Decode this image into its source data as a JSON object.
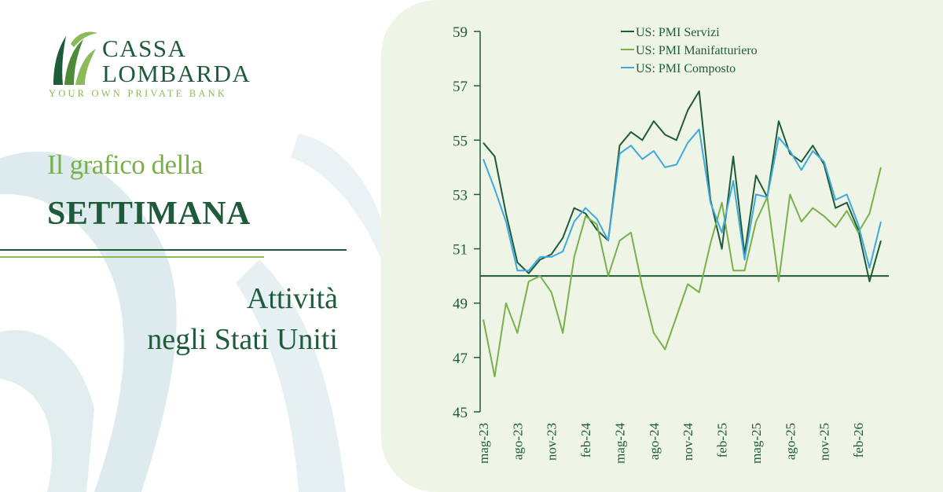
{
  "brand": {
    "name_line1": "CASSA",
    "name_line2": "LOMBARDA",
    "tagline": "YOUR OWN PRIVATE BANK",
    "color_dark": "#1e5b3a",
    "color_light": "#8bbb58"
  },
  "heading": {
    "line1": "Il grafico della",
    "line2": "SETTIMANA"
  },
  "subtitle": {
    "line1": "Attività",
    "line2": "negli Stati Uniti"
  },
  "chart_data": {
    "type": "line",
    "ylim": [
      45,
      59
    ],
    "yticks": [
      45,
      47,
      49,
      51,
      53,
      55,
      57,
      59
    ],
    "baseline": 50,
    "grid": false,
    "legend_position": "top",
    "x": [
      "mag-23",
      "giu-23",
      "lug-23",
      "ago-23",
      "set-23",
      "ott-23",
      "nov-23",
      "dic-23",
      "gen-24",
      "feb-24",
      "mar-24",
      "apr-24",
      "mag-24",
      "giu-24",
      "lug-24",
      "ago-24",
      "set-24",
      "ott-24",
      "nov-24",
      "dic-24",
      "gen-25",
      "feb-25",
      "mar-25",
      "apr-25",
      "mag-25",
      "giu-25",
      "lug-25",
      "ago-25",
      "set-25",
      "ott-25",
      "nov-25",
      "dic-25",
      "gen-26",
      "feb-26",
      "mar-26",
      "apr-26"
    ],
    "xtick_labels": [
      "mag-23",
      "ago-23",
      "nov-23",
      "feb-24",
      "mag-24",
      "ago-24",
      "nov-24",
      "feb-25",
      "mag-25",
      "ago-25",
      "nov-25",
      "feb-26"
    ],
    "series": [
      {
        "name": "US: PMI Servizi",
        "color": "#1e5b3a",
        "values": [
          54.9,
          54.4,
          52.3,
          50.5,
          50.1,
          50.6,
          50.8,
          51.4,
          52.5,
          52.3,
          51.7,
          51.3,
          54.8,
          55.3,
          55.0,
          55.7,
          55.2,
          55.0,
          56.1,
          56.8,
          52.8,
          51.0,
          54.4,
          50.8,
          53.7,
          52.9,
          55.7,
          54.5,
          54.2,
          54.8,
          54.1,
          52.5,
          52.7,
          51.7,
          49.8,
          51.3
        ]
      },
      {
        "name": "US: PMI Manifatturiero",
        "color": "#79b04c",
        "values": [
          48.4,
          46.3,
          49.0,
          47.9,
          49.8,
          50.0,
          49.4,
          47.9,
          50.7,
          52.2,
          51.9,
          50.0,
          51.3,
          51.6,
          49.6,
          47.9,
          47.3,
          48.5,
          49.7,
          49.4,
          51.2,
          52.7,
          50.2,
          50.2,
          52.0,
          52.9,
          49.8,
          53.0,
          52.0,
          52.5,
          52.2,
          51.8,
          52.4,
          51.6,
          52.3,
          54.0
        ]
      },
      {
        "name": "US: PMI Composto",
        "color": "#3fa9dd",
        "values": [
          54.3,
          53.2,
          52.0,
          50.2,
          50.2,
          50.7,
          50.7,
          50.9,
          52.0,
          52.5,
          52.1,
          51.3,
          54.5,
          54.8,
          54.3,
          54.6,
          54.0,
          54.1,
          54.9,
          55.4,
          52.7,
          51.6,
          53.5,
          50.6,
          53.0,
          52.9,
          55.1,
          54.6,
          53.9,
          54.6,
          54.2,
          52.8,
          53.0,
          51.9,
          50.3,
          52.0
        ]
      }
    ]
  }
}
